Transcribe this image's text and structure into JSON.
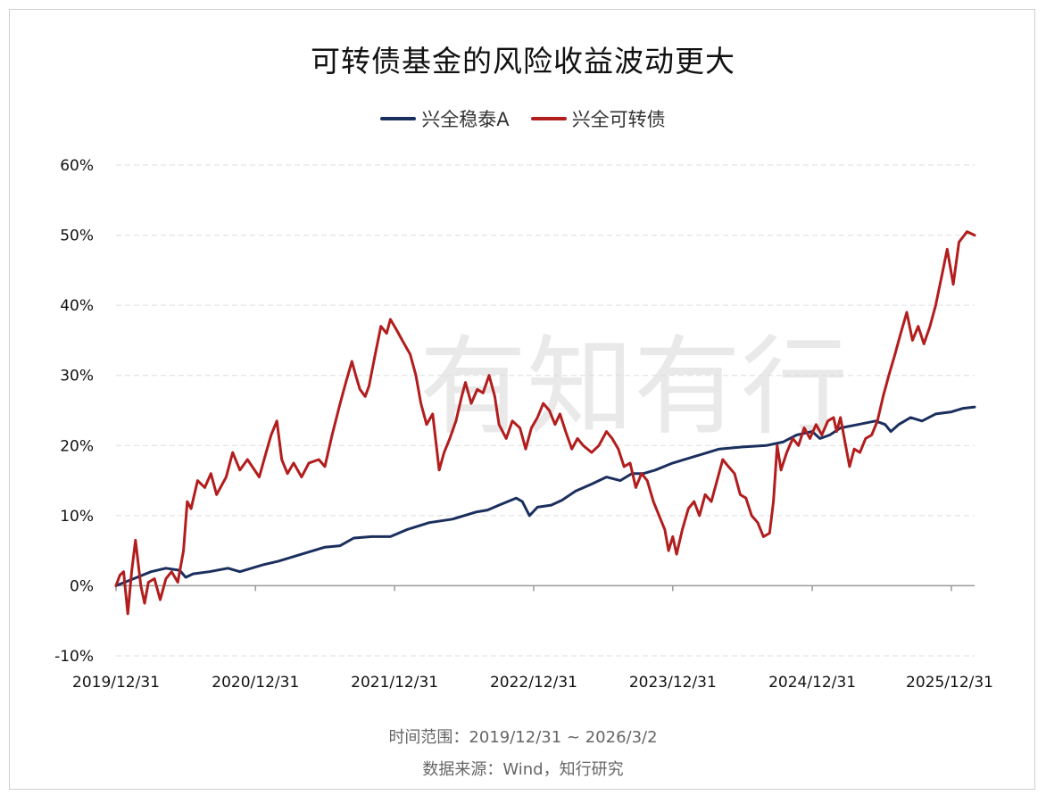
{
  "chart_data": {
    "type": "line",
    "title": "可转债基金的风险收益波动更大",
    "xlabel": "",
    "ylabel": "",
    "ylim": [
      -10,
      60
    ],
    "yticks": [
      -10,
      0,
      10,
      20,
      30,
      40,
      50,
      60
    ],
    "ytick_labels": [
      "-10%",
      "0%",
      "10%",
      "20%",
      "30%",
      "40%",
      "50%",
      "60%"
    ],
    "xtick_labels": [
      "2019/12/31",
      "2020/12/31",
      "2021/12/31",
      "2022/12/31",
      "2023/12/31",
      "2024/12/31",
      "2025/12/31"
    ],
    "x_range": [
      "2019-12-31",
      "2026-03-02"
    ],
    "grid": true,
    "legend_position": "top-center",
    "series": [
      {
        "name": "兴全稳泰A",
        "color": "#1b2f5e",
        "points": [
          [
            "2019-12-31",
            0
          ],
          [
            "2020-02-15",
            1.0
          ],
          [
            "2020-04-01",
            2.0
          ],
          [
            "2020-05-10",
            2.5
          ],
          [
            "2020-06-15",
            2.2
          ],
          [
            "2020-07-01",
            1.2
          ],
          [
            "2020-07-20",
            1.7
          ],
          [
            "2020-09-01",
            2.0
          ],
          [
            "2020-10-20",
            2.5
          ],
          [
            "2020-11-20",
            2.0
          ],
          [
            "2021-01-20",
            3.0
          ],
          [
            "2021-03-01",
            3.5
          ],
          [
            "2021-05-01",
            4.5
          ],
          [
            "2021-07-01",
            5.5
          ],
          [
            "2021-08-10",
            5.7
          ],
          [
            "2021-09-15",
            6.8
          ],
          [
            "2021-11-01",
            7.0
          ],
          [
            "2021-12-20",
            7.0
          ],
          [
            "2022-02-01",
            8.0
          ],
          [
            "2022-04-01",
            9.0
          ],
          [
            "2022-06-01",
            9.5
          ],
          [
            "2022-08-01",
            10.5
          ],
          [
            "2022-09-01",
            10.8
          ],
          [
            "2022-10-01",
            11.5
          ],
          [
            "2022-11-15",
            12.5
          ],
          [
            "2022-12-01",
            12.0
          ],
          [
            "2022-12-20",
            10.0
          ],
          [
            "2023-01-10",
            11.2
          ],
          [
            "2023-02-15",
            11.5
          ],
          [
            "2023-03-15",
            12.2
          ],
          [
            "2023-04-20",
            13.5
          ],
          [
            "2023-06-01",
            14.5
          ],
          [
            "2023-07-10",
            15.5
          ],
          [
            "2023-08-15",
            15.0
          ],
          [
            "2023-09-15",
            16.0
          ],
          [
            "2023-10-15",
            16.0
          ],
          [
            "2023-11-15",
            16.5
          ],
          [
            "2023-12-31",
            17.5
          ],
          [
            "2024-03-01",
            18.5
          ],
          [
            "2024-05-01",
            19.5
          ],
          [
            "2024-07-01",
            19.8
          ],
          [
            "2024-09-01",
            20.0
          ],
          [
            "2024-10-15",
            20.5
          ],
          [
            "2024-11-20",
            21.5
          ],
          [
            "2024-12-31",
            22.0
          ],
          [
            "2025-01-20",
            21.0
          ],
          [
            "2025-02-15",
            21.5
          ],
          [
            "2025-03-15",
            22.5
          ],
          [
            "2025-05-01",
            23.0
          ],
          [
            "2025-06-15",
            23.5
          ],
          [
            "2025-07-10",
            23.0
          ],
          [
            "2025-07-25",
            22.0
          ],
          [
            "2025-08-15",
            23.0
          ],
          [
            "2025-09-15",
            24.0
          ],
          [
            "2025-10-15",
            23.5
          ],
          [
            "2025-11-20",
            24.5
          ],
          [
            "2025-12-31",
            24.8
          ],
          [
            "2026-01-31",
            25.3
          ],
          [
            "2026-03-02",
            25.5
          ]
        ]
      },
      {
        "name": "兴全可转债",
        "color": "#b21d1d",
        "points": [
          [
            "2019-12-31",
            0
          ],
          [
            "2020-01-10",
            1.5
          ],
          [
            "2020-01-20",
            2.0
          ],
          [
            "2020-01-31",
            -4.0
          ],
          [
            "2020-02-10",
            2.0
          ],
          [
            "2020-02-20",
            6.5
          ],
          [
            "2020-03-05",
            0
          ],
          [
            "2020-03-15",
            -2.5
          ],
          [
            "2020-03-25",
            0.5
          ],
          [
            "2020-04-10",
            1.0
          ],
          [
            "2020-04-25",
            -2.0
          ],
          [
            "2020-05-10",
            1.0
          ],
          [
            "2020-05-25",
            2.0
          ],
          [
            "2020-06-10",
            0.5
          ],
          [
            "2020-06-25",
            5.0
          ],
          [
            "2020-07-05",
            12.0
          ],
          [
            "2020-07-15",
            11.0
          ],
          [
            "2020-08-01",
            15.0
          ],
          [
            "2020-08-20",
            14.0
          ],
          [
            "2020-09-05",
            16.0
          ],
          [
            "2020-09-20",
            13.0
          ],
          [
            "2020-10-15",
            15.5
          ],
          [
            "2020-11-01",
            19.0
          ],
          [
            "2020-11-20",
            16.5
          ],
          [
            "2020-12-10",
            18.0
          ],
          [
            "2021-01-10",
            15.5
          ],
          [
            "2021-01-25",
            18.5
          ],
          [
            "2021-02-10",
            21.5
          ],
          [
            "2021-02-25",
            23.5
          ],
          [
            "2021-03-10",
            18.0
          ],
          [
            "2021-03-25",
            16.0
          ],
          [
            "2021-04-10",
            17.5
          ],
          [
            "2021-05-01",
            15.5
          ],
          [
            "2021-05-20",
            17.5
          ],
          [
            "2021-06-15",
            18.0
          ],
          [
            "2021-07-01",
            17.0
          ],
          [
            "2021-07-20",
            21.5
          ],
          [
            "2021-08-10",
            26.0
          ],
          [
            "2021-08-25",
            29.0
          ],
          [
            "2021-09-10",
            32.0
          ],
          [
            "2021-09-20",
            30.0
          ],
          [
            "2021-10-01",
            28.0
          ],
          [
            "2021-10-15",
            27.0
          ],
          [
            "2021-10-25",
            28.5
          ],
          [
            "2021-11-10",
            33.0
          ],
          [
            "2021-11-25",
            37.0
          ],
          [
            "2021-12-10",
            36.0
          ],
          [
            "2021-12-20",
            38.0
          ],
          [
            "2022-01-05",
            36.5
          ],
          [
            "2022-01-20",
            35.0
          ],
          [
            "2022-02-10",
            33.0
          ],
          [
            "2022-02-25",
            30.0
          ],
          [
            "2022-03-10",
            26.0
          ],
          [
            "2022-03-25",
            23.0
          ],
          [
            "2022-04-10",
            24.5
          ],
          [
            "2022-04-27",
            16.5
          ],
          [
            "2022-05-10",
            19.0
          ],
          [
            "2022-05-25",
            21.0
          ],
          [
            "2022-06-10",
            23.5
          ],
          [
            "2022-06-25",
            27.0
          ],
          [
            "2022-07-05",
            29.0
          ],
          [
            "2022-07-20",
            26.0
          ],
          [
            "2022-08-05",
            28.0
          ],
          [
            "2022-08-20",
            27.5
          ],
          [
            "2022-09-05",
            30.0
          ],
          [
            "2022-09-20",
            27.0
          ],
          [
            "2022-10-01",
            23.0
          ],
          [
            "2022-10-20",
            21.0
          ],
          [
            "2022-11-05",
            23.5
          ],
          [
            "2022-11-25",
            22.5
          ],
          [
            "2022-12-10",
            19.5
          ],
          [
            "2022-12-25",
            22.5
          ],
          [
            "2023-01-10",
            24.0
          ],
          [
            "2023-01-25",
            26.0
          ],
          [
            "2023-02-10",
            25.0
          ],
          [
            "2023-02-25",
            23.0
          ],
          [
            "2023-03-10",
            24.5
          ],
          [
            "2023-03-25",
            22.0
          ],
          [
            "2023-04-10",
            19.5
          ],
          [
            "2023-04-25",
            21.0
          ],
          [
            "2023-05-10",
            20.0
          ],
          [
            "2023-06-01",
            19.0
          ],
          [
            "2023-06-20",
            20.0
          ],
          [
            "2023-07-10",
            22.0
          ],
          [
            "2023-07-25",
            21.0
          ],
          [
            "2023-08-10",
            19.5
          ],
          [
            "2023-08-25",
            17.0
          ],
          [
            "2023-09-10",
            17.5
          ],
          [
            "2023-09-25",
            14.0
          ],
          [
            "2023-10-10",
            16.0
          ],
          [
            "2023-10-25",
            15.0
          ],
          [
            "2023-11-10",
            12.0
          ],
          [
            "2023-11-25",
            10.0
          ],
          [
            "2023-12-10",
            8.0
          ],
          [
            "2023-12-20",
            5.0
          ],
          [
            "2023-12-31",
            7.0
          ],
          [
            "2024-01-10",
            4.5
          ],
          [
            "2024-01-25",
            8.0
          ],
          [
            "2024-02-10",
            11.0
          ],
          [
            "2024-02-25",
            12.0
          ],
          [
            "2024-03-10",
            10.0
          ],
          [
            "2024-03-25",
            13.0
          ],
          [
            "2024-04-10",
            12.0
          ],
          [
            "2024-04-25",
            15.0
          ],
          [
            "2024-05-10",
            18.0
          ],
          [
            "2024-05-25",
            17.0
          ],
          [
            "2024-06-10",
            16.0
          ],
          [
            "2024-06-25",
            13.0
          ],
          [
            "2024-07-10",
            12.5
          ],
          [
            "2024-07-25",
            10.0
          ],
          [
            "2024-08-10",
            9.0
          ],
          [
            "2024-08-25",
            7.0
          ],
          [
            "2024-09-10",
            7.5
          ],
          [
            "2024-09-20",
            12.0
          ],
          [
            "2024-09-30",
            20.0
          ],
          [
            "2024-10-10",
            16.5
          ],
          [
            "2024-10-25",
            19.0
          ],
          [
            "2024-11-10",
            21.0
          ],
          [
            "2024-11-25",
            20.0
          ],
          [
            "2024-12-10",
            22.5
          ],
          [
            "2024-12-25",
            21.0
          ],
          [
            "2025-01-10",
            23.0
          ],
          [
            "2025-01-25",
            21.5
          ],
          [
            "2025-02-10",
            23.5
          ],
          [
            "2025-02-25",
            24.0
          ],
          [
            "2025-03-05",
            22.0
          ],
          [
            "2025-03-15",
            24.0
          ],
          [
            "2025-04-08",
            17.0
          ],
          [
            "2025-04-20",
            19.5
          ],
          [
            "2025-05-05",
            19.0
          ],
          [
            "2025-05-20",
            21.0
          ],
          [
            "2025-06-05",
            21.5
          ],
          [
            "2025-06-20",
            23.5
          ],
          [
            "2025-07-05",
            27.0
          ],
          [
            "2025-07-20",
            30.0
          ],
          [
            "2025-08-05",
            33.0
          ],
          [
            "2025-08-20",
            36.0
          ],
          [
            "2025-09-05",
            39.0
          ],
          [
            "2025-09-20",
            35.0
          ],
          [
            "2025-10-05",
            37.0
          ],
          [
            "2025-10-20",
            34.5
          ],
          [
            "2025-11-05",
            37.0
          ],
          [
            "2025-11-20",
            40.0
          ],
          [
            "2025-12-05",
            44.0
          ],
          [
            "2025-12-20",
            48.0
          ],
          [
            "2026-01-05",
            43.0
          ],
          [
            "2026-01-20",
            49.0
          ],
          [
            "2026-02-10",
            50.5
          ],
          [
            "2026-03-02",
            50.0
          ]
        ]
      }
    ]
  },
  "watermark": "有知有行",
  "footer": {
    "range": "时间范围：2019/12/31 ~ 2026/3/2",
    "source": "数据来源：Wind，知行研究"
  }
}
